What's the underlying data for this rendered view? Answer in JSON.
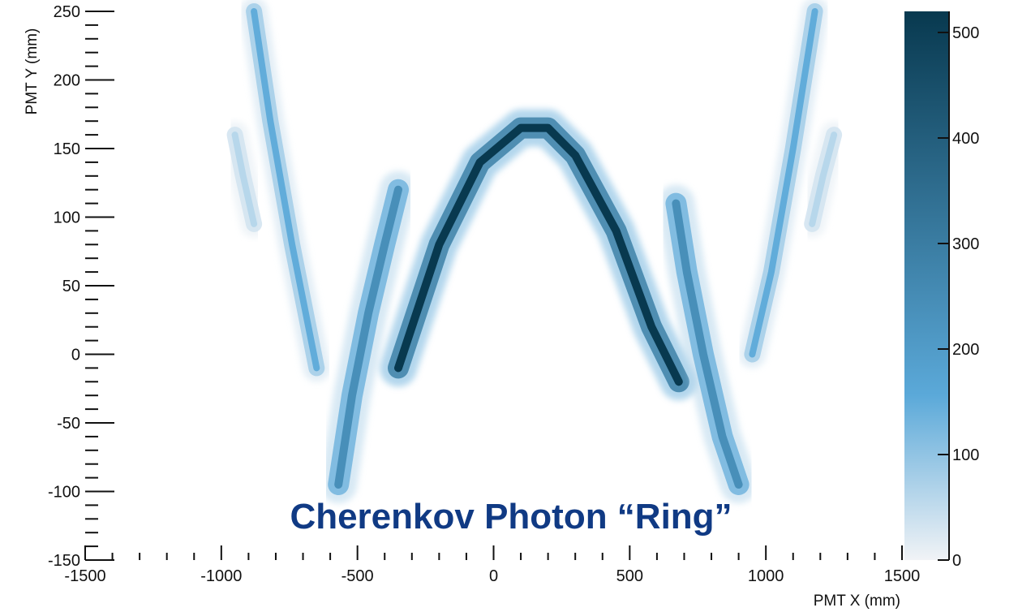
{
  "overlay_text": "Cherenkov Photon “Ring”",
  "colors": {
    "overlay": "#103a84",
    "scale_low": "#f1f3f6",
    "scale_mid": "#5ba9d9",
    "scale_high": "#08394f"
  },
  "chart_data": {
    "type": "heatmap",
    "title": "",
    "xlabel": "PMT X (mm)",
    "ylabel": "PMT Y (mm)",
    "xlim": [
      -1500,
      1500
    ],
    "ylim": [
      -150,
      250
    ],
    "zlim": [
      0,
      520
    ],
    "x_ticks": [
      "-1500",
      "-1000",
      "-500",
      "0",
      "500",
      "1000",
      "1500"
    ],
    "y_ticks": [
      "-150",
      "-100",
      "-50",
      "0",
      "50",
      "100",
      "150",
      "200",
      "250"
    ],
    "colorbar_ticks": [
      "0",
      "100",
      "200",
      "300",
      "400",
      "500"
    ],
    "grid": false,
    "bands": [
      {
        "name": "central arc",
        "points": [
          [
            -350,
            -10
          ],
          [
            -200,
            80
          ],
          [
            -50,
            140
          ],
          [
            100,
            165
          ],
          [
            200,
            165
          ],
          [
            300,
            145
          ],
          [
            450,
            90
          ],
          [
            580,
            20
          ],
          [
            680,
            -20
          ]
        ],
        "peak": 520
      },
      {
        "name": "inner left arc",
        "points": [
          [
            -570,
            -95
          ],
          [
            -520,
            -30
          ],
          [
            -460,
            30
          ],
          [
            -400,
            80
          ],
          [
            -350,
            120
          ]
        ],
        "peak": 240
      },
      {
        "name": "inner right arc",
        "points": [
          [
            670,
            110
          ],
          [
            710,
            60
          ],
          [
            770,
            0
          ],
          [
            840,
            -60
          ],
          [
            900,
            -95
          ]
        ],
        "peak": 240
      },
      {
        "name": "outer left streak",
        "points": [
          [
            -880,
            250
          ],
          [
            -820,
            170
          ],
          [
            -740,
            80
          ],
          [
            -650,
            -10
          ]
        ],
        "peak": 150
      },
      {
        "name": "outer right streak",
        "points": [
          [
            950,
            0
          ],
          [
            1020,
            60
          ],
          [
            1100,
            150
          ],
          [
            1180,
            250
          ]
        ],
        "peak": 150
      },
      {
        "name": "far left blob",
        "points": [
          [
            -950,
            160
          ],
          [
            -920,
            130
          ],
          [
            -880,
            95
          ]
        ],
        "peak": 60
      },
      {
        "name": "far right blob",
        "points": [
          [
            1250,
            160
          ],
          [
            1210,
            130
          ],
          [
            1170,
            95
          ]
        ],
        "peak": 60
      }
    ]
  }
}
